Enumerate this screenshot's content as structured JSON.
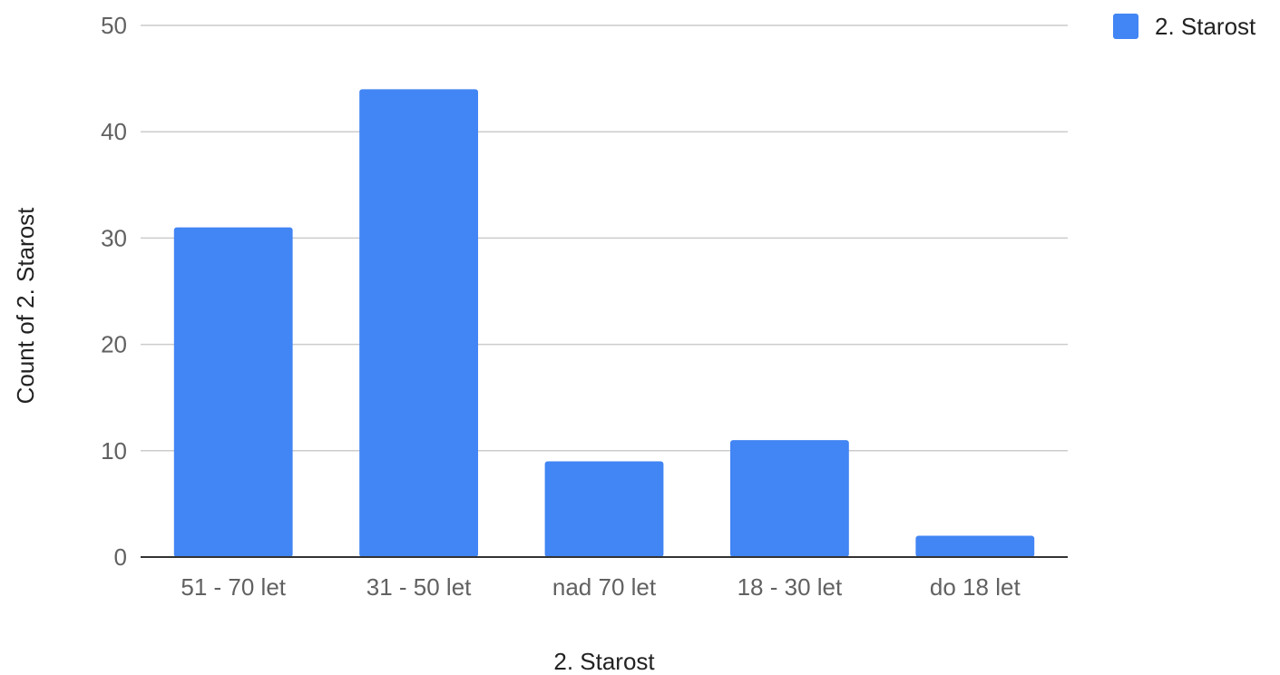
{
  "chart_data": {
    "type": "bar",
    "categories": [
      "51 - 70 let",
      "31 - 50 let",
      "nad 70 let",
      "18 - 30 let",
      "do 18 let"
    ],
    "series": [
      {
        "name": "2. Starost",
        "values": [
          31,
          44,
          9,
          11,
          2
        ],
        "color": "#4285f4"
      }
    ],
    "title": "",
    "xlabel": "2. Starost",
    "ylabel": "Count of 2. Starost",
    "ylim": [
      0,
      50
    ],
    "yticks": [
      0,
      10,
      20,
      30,
      40,
      50
    ],
    "grid": true,
    "legend_position": "top-right"
  }
}
